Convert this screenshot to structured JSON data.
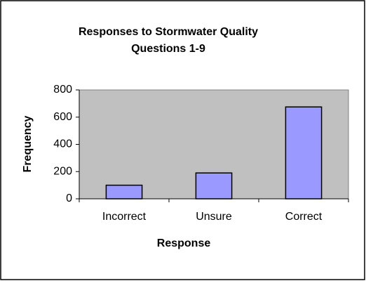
{
  "chart_data": {
    "type": "bar",
    "title": "Responses to Stormwater Quality Questions 1-9",
    "x_label": "Response",
    "y_label": "Frequency",
    "categories": [
      "Incorrect",
      "Unsure",
      "Correct"
    ],
    "values": [
      100,
      190,
      675
    ],
    "color": "#9999ff",
    "plot_background": "#c0c0c0",
    "ylim": [
      0,
      800
    ],
    "yticks": [
      0,
      200,
      400,
      600,
      800
    ],
    "grid": false
  }
}
